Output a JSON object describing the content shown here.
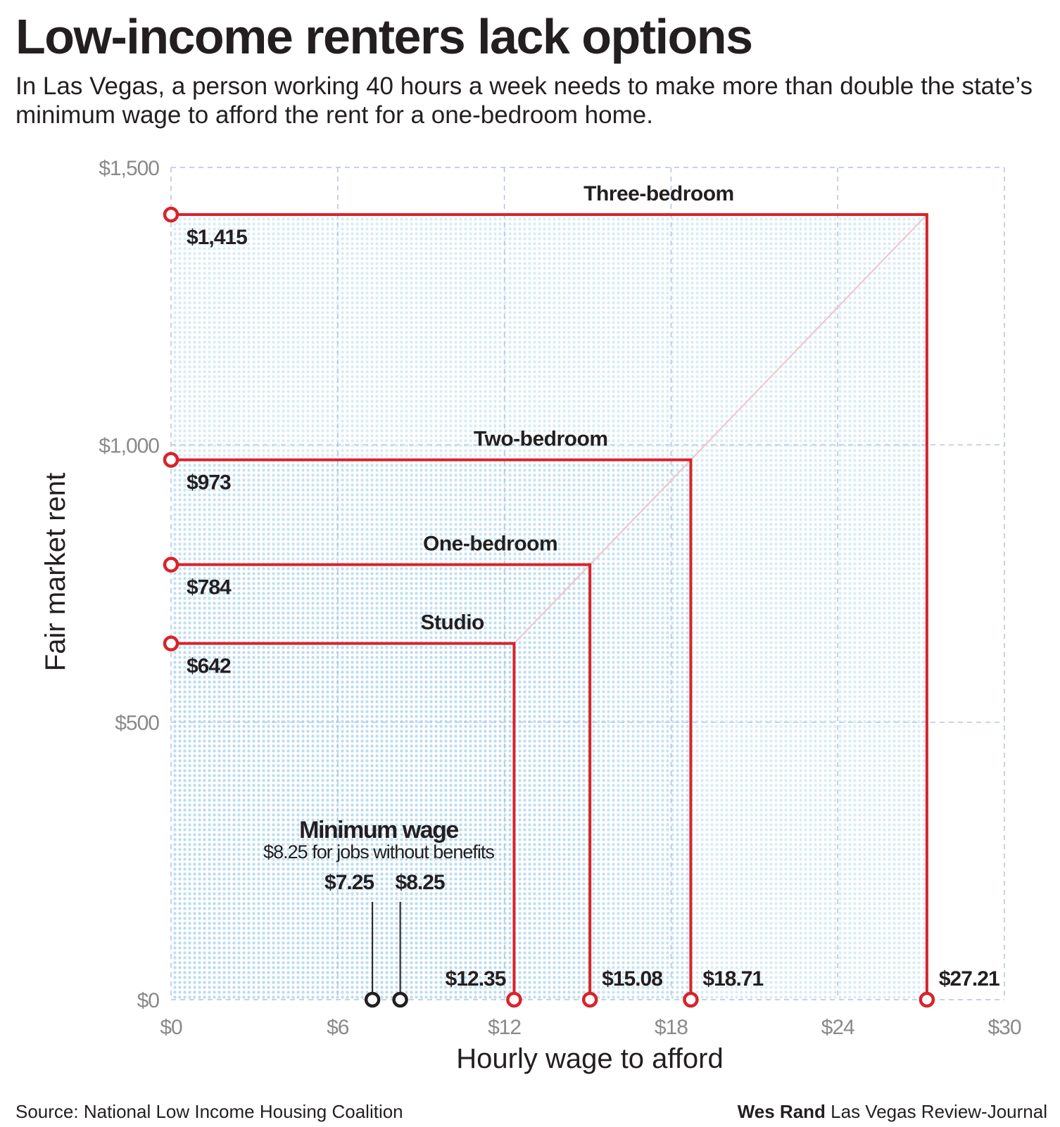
{
  "title": "Low-income renters lack options",
  "subtitle": "In Las Vegas, a person working 40 hours a week needs to make more than double the state’s minimum wage to afford the rent for a one-bedroom home.",
  "source": "Source: National Low Income Housing Coalition",
  "credit": {
    "author": "Wes Rand",
    "outlet": "Las Vegas Review-Journal"
  },
  "colors": {
    "accent": "#d8232a",
    "grid": "#b7c2dc",
    "fill": "#cfe6f4",
    "tick": "#8a8a8c",
    "text": "#231f20"
  },
  "chart_data": {
    "type": "step",
    "title": "Low-income renters lack options",
    "xlabel": "Hourly wage to afford",
    "ylabel": "Fair market rent",
    "xlim": [
      0,
      30
    ],
    "ylim": [
      0,
      1500
    ],
    "xticks": [
      0,
      6,
      12,
      18,
      24,
      30
    ],
    "yticks": [
      0,
      500,
      1000,
      1500
    ],
    "xtick_labels": [
      "$0",
      "$6",
      "$12",
      "$18",
      "$24",
      "$30"
    ],
    "ytick_labels": [
      "$0",
      "$500",
      "$1,000",
      "$1,500"
    ],
    "grid": true,
    "series": [
      {
        "name": "Studio",
        "rent": 642,
        "wage": 12.35,
        "rent_label": "$642",
        "wage_label": "$12.35"
      },
      {
        "name": "One-bedroom",
        "rent": 784,
        "wage": 15.08,
        "rent_label": "$784",
        "wage_label": "$15.08"
      },
      {
        "name": "Two-bedroom",
        "rent": 973,
        "wage": 18.71,
        "rent_label": "$973",
        "wage_label": "$18.71"
      },
      {
        "name": "Three-bedroom",
        "rent": 1415,
        "wage": 27.21,
        "rent_label": "$1,415",
        "wage_label": "$27.21"
      }
    ],
    "minimum_wage": {
      "title": "Minimum wage",
      "note": "$8.25 for jobs without benefits",
      "points": [
        {
          "wage": 7.25,
          "label": "$7.25"
        },
        {
          "wage": 8.25,
          "label": "$8.25"
        }
      ]
    }
  }
}
